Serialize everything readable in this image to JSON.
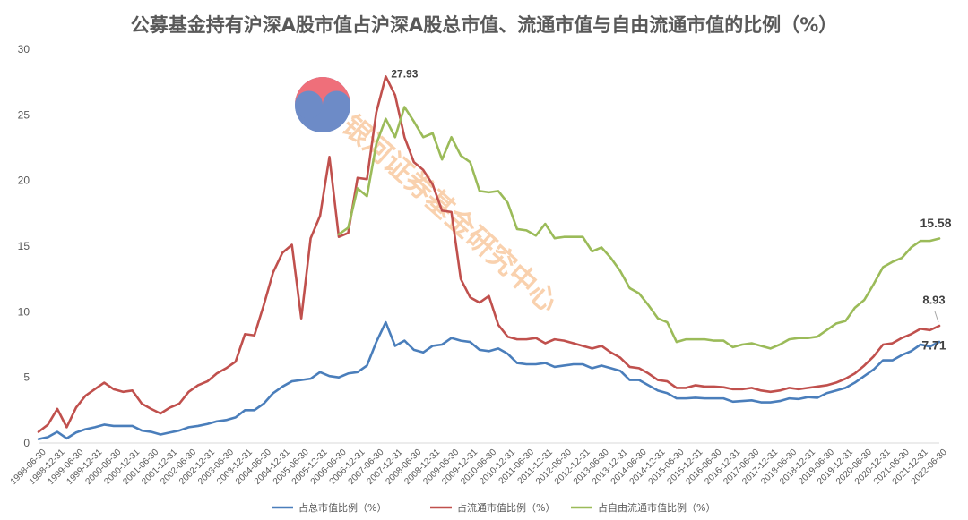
{
  "chart_data": {
    "type": "line",
    "title": "公募基金持有沪深A股市值占沪深A股总市值、流通市值与自由流通市值的比例（%）",
    "ylim": [
      0,
      30
    ],
    "yticks": [
      0,
      5,
      10,
      15,
      20,
      25,
      30
    ],
    "grid": false,
    "legend_position": "bottom",
    "x_labels": [
      "1998-06-30",
      "1998-12-31",
      "1999-06-30",
      "1999-12-31",
      "2000-06-30",
      "2000-12-31",
      "2001-06-30",
      "2001-12-31",
      "2002-06-30",
      "2002-12-31",
      "2003-06-30",
      "2003-12-31",
      "2004-06-30",
      "2004-12-31",
      "2005-06-30",
      "2005-12-31",
      "2006-06-30",
      "2006-12-31",
      "2007-06-30",
      "2007-12-31",
      "2008-06-30",
      "2008-12-31",
      "2009-06-30",
      "2009-12-31",
      "2010-06-30",
      "2010-12-31",
      "2011-06-30",
      "2011-12-31",
      "2012-06-30",
      "2012-12-31",
      "2013-06-30",
      "2013-12-31",
      "2014-06-30",
      "2014-12-31",
      "2015-06-30",
      "2015-12-31",
      "2016-06-30",
      "2016-12-31",
      "2017-06-30",
      "2017-12-31",
      "2018-06-30",
      "2018-12-31",
      "2019-06-30",
      "2019-12-31",
      "2020-06-30",
      "2020-12-31",
      "2021-06-30",
      "2021-12-31",
      "2022-06-30"
    ],
    "quarterly_points": 97,
    "series": [
      {
        "name": "占总市值比例（%）",
        "color": "#4a7ebb",
        "start_index": 0,
        "values": [
          0.3,
          0.45,
          0.85,
          0.35,
          0.8,
          1.05,
          1.2,
          1.4,
          1.3,
          1.3,
          1.3,
          0.95,
          0.85,
          0.65,
          0.8,
          0.95,
          1.2,
          1.3,
          1.45,
          1.65,
          1.75,
          1.95,
          2.5,
          2.5,
          3.0,
          3.8,
          4.3,
          4.7,
          4.8,
          4.9,
          5.4,
          5.1,
          5.0,
          5.3,
          5.4,
          5.9,
          7.7,
          9.2,
          7.4,
          7.8,
          7.1,
          6.9,
          7.4,
          7.5,
          8.0,
          7.8,
          7.7,
          7.1,
          7.0,
          7.2,
          6.8,
          6.1,
          6.0,
          6.0,
          6.1,
          5.8,
          5.9,
          6.0,
          6.0,
          5.7,
          5.9,
          5.7,
          5.5,
          4.8,
          4.8,
          4.4,
          4.0,
          3.8,
          3.4,
          3.4,
          3.45,
          3.4,
          3.4,
          3.4,
          3.15,
          3.2,
          3.25,
          3.1,
          3.1,
          3.2,
          3.4,
          3.35,
          3.5,
          3.45,
          3.8,
          4.0,
          4.2,
          4.6,
          5.1,
          5.6,
          6.3,
          6.3,
          6.7,
          7.0,
          7.5,
          7.35,
          7.71
        ]
      },
      {
        "name": "占流通市值比例（%）",
        "color": "#c0504d",
        "start_index": 0,
        "values": [
          0.85,
          1.4,
          2.6,
          1.2,
          2.7,
          3.6,
          4.1,
          4.6,
          4.1,
          3.9,
          4.0,
          3.0,
          2.6,
          2.25,
          2.7,
          3.0,
          3.9,
          4.4,
          4.7,
          5.3,
          5.7,
          6.2,
          8.3,
          8.2,
          10.5,
          13.0,
          14.5,
          15.1,
          9.5,
          15.6,
          17.3,
          21.8,
          15.7,
          16.0,
          20.2,
          20.1,
          25.2,
          27.93,
          26.5,
          23.3,
          21.4,
          20.8,
          19.7,
          17.7,
          17.6,
          12.5,
          11.1,
          10.7,
          11.2,
          9.0,
          8.1,
          7.9,
          7.9,
          8.0,
          7.6,
          7.9,
          7.8,
          7.6,
          7.4,
          7.2,
          7.4,
          6.9,
          6.5,
          5.8,
          5.7,
          5.3,
          4.8,
          4.7,
          4.2,
          4.2,
          4.4,
          4.3,
          4.3,
          4.25,
          4.1,
          4.1,
          4.2,
          4.0,
          3.9,
          4.0,
          4.2,
          4.1,
          4.2,
          4.3,
          4.4,
          4.6,
          4.9,
          5.3,
          5.9,
          6.6,
          7.5,
          7.6,
          8.0,
          8.3,
          8.7,
          8.6,
          8.93
        ]
      },
      {
        "name": "占自由流通市值比例（%）",
        "color": "#9bbb59",
        "start_index": 32,
        "values": [
          15.9,
          16.4,
          19.4,
          18.8,
          22.8,
          24.7,
          23.3,
          25.6,
          24.5,
          23.3,
          23.6,
          21.6,
          23.3,
          21.9,
          21.4,
          19.2,
          19.1,
          19.2,
          18.3,
          16.3,
          16.2,
          15.8,
          16.7,
          15.6,
          15.7,
          15.7,
          15.7,
          14.6,
          14.9,
          14.1,
          13.1,
          11.8,
          11.4,
          10.5,
          9.5,
          9.2,
          7.7,
          7.9,
          7.9,
          7.9,
          7.8,
          7.8,
          7.3,
          7.5,
          7.6,
          7.4,
          7.2,
          7.5,
          7.9,
          8.0,
          8.0,
          8.1,
          8.6,
          9.1,
          9.3,
          10.3,
          10.9,
          12.1,
          13.4,
          13.8,
          14.1,
          14.9,
          15.4,
          15.4,
          15.58
        ]
      }
    ],
    "annotations": [
      {
        "text": "27.93",
        "series": 1,
        "index": 37
      },
      {
        "text": "15.58",
        "series": 2,
        "index": 96
      },
      {
        "text": "8.93",
        "series": 1,
        "index": 96
      },
      {
        "text": "7.71",
        "series": 0,
        "index": 96
      }
    ]
  },
  "watermark": {
    "text": "银河证券基金研究中心",
    "logo_colors": [
      "#ef6f7a",
      "#6d8bc7"
    ]
  }
}
